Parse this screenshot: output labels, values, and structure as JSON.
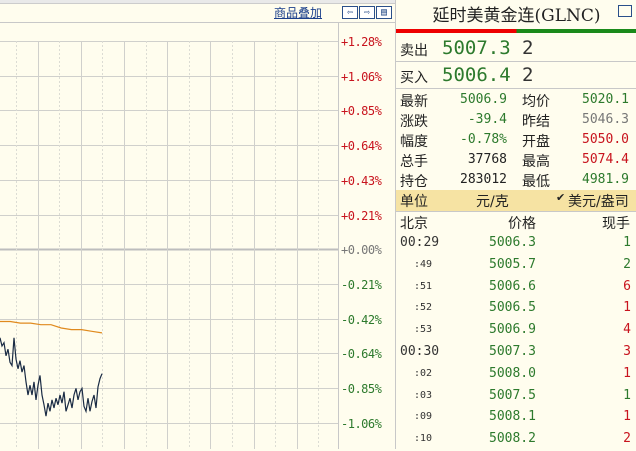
{
  "chart_header": {
    "overlay_link": "商品叠加",
    "nav_icons": [
      "arrow-left-icon",
      "arrow-right-icon",
      "layout-icon"
    ]
  },
  "chart_data": {
    "type": "line",
    "y_axis_labels": [
      "+1.28%",
      "+1.06%",
      "+0.85%",
      "+0.64%",
      "+0.43%",
      "+0.21%",
      "+0.00%",
      "-0.21%",
      "-0.42%",
      "-0.64%",
      "-0.85%",
      "-1.06%"
    ],
    "series": [
      {
        "color": "#1a2b44",
        "values_pct": [
          -0.55,
          -0.6,
          -0.58,
          -0.66,
          -0.62,
          -0.7,
          -0.72,
          -0.55,
          -0.68,
          -0.74,
          -0.69,
          -0.76,
          -0.72,
          -0.82,
          -0.9,
          -0.84,
          -0.9,
          -0.82,
          -0.93,
          -0.84,
          -0.78,
          -0.9,
          -0.96,
          -1.03,
          -0.95,
          -1.0,
          -0.93,
          -0.98,
          -0.92,
          -0.96,
          -0.9,
          -0.95,
          -0.88,
          -1.0,
          -0.96,
          -0.92,
          -0.98,
          -0.9,
          -0.86,
          -0.93,
          -0.88,
          -0.86,
          -0.97,
          -1.0,
          -0.92,
          -1.0,
          -0.94,
          -0.9,
          -0.98,
          -0.85,
          -0.8,
          -0.77
        ]
      },
      {
        "color": "#e08a1e",
        "values_pct": [
          -0.45,
          -0.45,
          -0.46,
          -0.46,
          -0.47,
          -0.47,
          -0.49,
          -0.5,
          -0.5,
          -0.51,
          -0.52
        ]
      }
    ],
    "colors": {
      "up": "#c8141e",
      "down": "#2d7a2d",
      "zero": "#777777"
    }
  },
  "panel": {
    "title": "延时美黄金连(GLNC)",
    "sell": {
      "label": "卖出",
      "price": "5007.3",
      "vol": "2"
    },
    "buy": {
      "label": "买入",
      "price": "5006.4",
      "vol": "2"
    },
    "stats": [
      {
        "l1": "最新",
        "v1": "5006.9",
        "c1": "g",
        "l2": "均价",
        "v2": "5020.1",
        "c2": "g"
      },
      {
        "l1": "涨跌",
        "v1": "-39.4",
        "c1": "g",
        "l2": "昨结",
        "v2": "5046.3",
        "c2": "gy"
      },
      {
        "l1": "幅度",
        "v1": "-0.78%",
        "c1": "g",
        "l2": "开盘",
        "v2": "5050.0",
        "c2": "r"
      },
      {
        "l1": "总手",
        "v1": "37768",
        "c1": "k",
        "l2": "最高",
        "v2": "5074.4",
        "c2": "r"
      },
      {
        "l1": "持仓",
        "v1": "283012",
        "c1": "k",
        "l2": "最低",
        "v2": "4981.9",
        "c2": "g"
      }
    ],
    "unit": {
      "label": "单位",
      "option1": "元/克",
      "option2": "美元/盎司",
      "selected": "美元/盎司"
    },
    "ticks_header": {
      "time": "北京",
      "price": "价格",
      "vol": "现手"
    },
    "ticks": [
      {
        "t": "00:29",
        "p": "5006.3",
        "v": "1",
        "vc": "g",
        "full": true
      },
      {
        "t": ":49",
        "p": "5005.7",
        "v": "2",
        "vc": "g"
      },
      {
        "t": ":51",
        "p": "5006.6",
        "v": "6",
        "vc": "r"
      },
      {
        "t": ":52",
        "p": "5006.5",
        "v": "1",
        "vc": "r"
      },
      {
        "t": ":53",
        "p": "5006.9",
        "v": "4",
        "vc": "r"
      },
      {
        "t": "00:30",
        "p": "5007.3",
        "v": "3",
        "vc": "r",
        "full": true
      },
      {
        "t": ":02",
        "p": "5008.0",
        "v": "1",
        "vc": "r"
      },
      {
        "t": ":03",
        "p": "5007.5",
        "v": "1",
        "vc": "g"
      },
      {
        "t": ":09",
        "p": "5008.1",
        "v": "1",
        "vc": "r"
      },
      {
        "t": ":10",
        "p": "5008.2",
        "v": "2",
        "vc": "r"
      }
    ]
  }
}
